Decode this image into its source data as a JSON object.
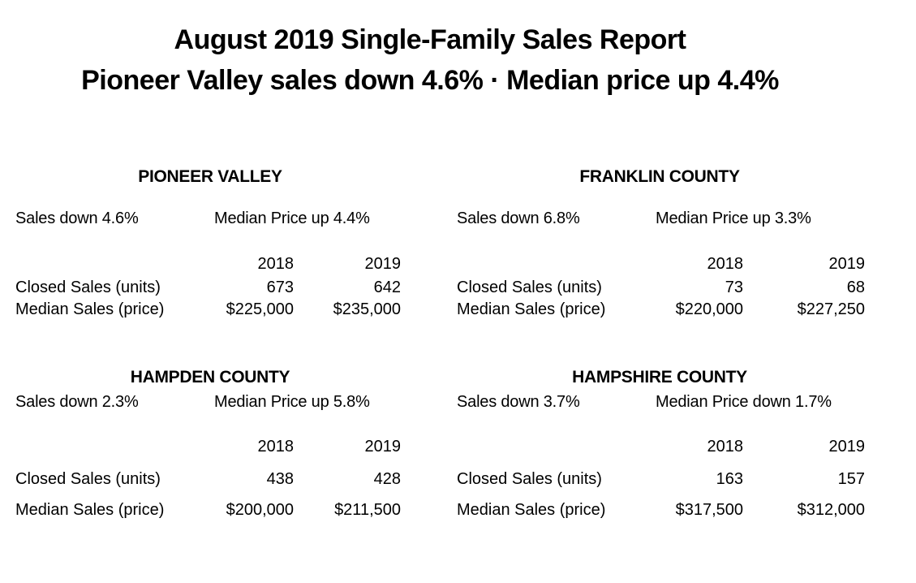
{
  "title_line1": "August 2019 Single-Family Sales Report",
  "title_line2": "Pioneer Valley sales down 4.6% · Median price up 4.4%",
  "regions": [
    {
      "name": "PIONEER VALLEY",
      "sales_summary": "Sales down 4.6%",
      "median_summary": "Median Price up 4.4%",
      "years": [
        "2018",
        "2019"
      ],
      "rows": [
        {
          "label": "Closed Sales (units)",
          "v2018": "673",
          "v2019": "642"
        },
        {
          "label": "Median Sales (price)",
          "v2018": "$225,000",
          "v2019": "$235,000"
        }
      ]
    },
    {
      "name": "FRANKLIN COUNTY",
      "sales_summary": "Sales down 6.8%",
      "median_summary": "Median Price up 3.3%",
      "years": [
        "2018",
        "2019"
      ],
      "rows": [
        {
          "label": "Closed Sales (units)",
          "v2018": "73",
          "v2019": "68"
        },
        {
          "label": "Median Sales (price)",
          "v2018": "$220,000",
          "v2019": "$227,250"
        }
      ]
    },
    {
      "name": "HAMPDEN COUNTY",
      "sales_summary": "Sales down 2.3%",
      "median_summary": "Median Price up 5.8%",
      "years": [
        "2018",
        "2019"
      ],
      "rows": [
        {
          "label": "Closed Sales (units)",
          "v2018": "438",
          "v2019": "428"
        },
        {
          "label": "Median Sales (price)",
          "v2018": "$200,000",
          "v2019": "$211,500"
        }
      ]
    },
    {
      "name": "HAMPSHIRE COUNTY",
      "sales_summary": "Sales down 3.7%",
      "median_summary": "Median Price down 1.7%",
      "years": [
        "2018",
        "2019"
      ],
      "rows": [
        {
          "label": "Closed Sales (units)",
          "v2018": "163",
          "v2019": "157"
        },
        {
          "label": "Median Sales (price)",
          "v2018": "$317,500",
          "v2019": "$312,000"
        }
      ]
    }
  ]
}
